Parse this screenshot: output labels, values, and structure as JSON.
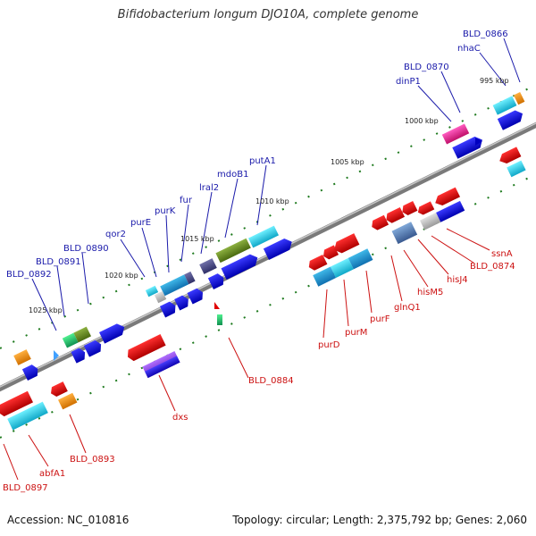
{
  "title": "Bifidobacterium longum DJO10A, complete genome",
  "footer": {
    "accession": "Accession: NC_010816",
    "summary": "Topology: circular; Length: 2,375,792 bp; Genes: 2,060"
  },
  "colors": {
    "forward_label": "#1a1aaa",
    "reverse_label": "#cc1111",
    "backbone": "#888888",
    "tick": "#1e7a1e"
  },
  "kbp_ticks": [
    {
      "label": "995 kbp"
    },
    {
      "label": "1000 kbp"
    },
    {
      "label": "1005 kbp"
    },
    {
      "label": "1010 kbp"
    },
    {
      "label": "1015 kbp"
    },
    {
      "label": "1020 kbp"
    },
    {
      "label": "1025 kbp"
    }
  ],
  "forward_genes": [
    {
      "label": "BLD_0866"
    },
    {
      "label": "nhaC"
    },
    {
      "label": "BLD_0870"
    },
    {
      "label": "dinP1"
    },
    {
      "label": "putA1"
    },
    {
      "label": "mdoB1"
    },
    {
      "label": "lral2"
    },
    {
      "label": "fur"
    },
    {
      "label": "purK"
    },
    {
      "label": "purE"
    },
    {
      "label": "qor2"
    },
    {
      "label": "BLD_0890"
    },
    {
      "label": "BLD_0891"
    },
    {
      "label": "BLD_0892"
    }
  ],
  "reverse_genes": [
    {
      "label": "ssnA"
    },
    {
      "label": "BLD_0874"
    },
    {
      "label": "hisJ4"
    },
    {
      "label": "hisM5"
    },
    {
      "label": "glnQ1"
    },
    {
      "label": "purF"
    },
    {
      "label": "purM"
    },
    {
      "label": "purD"
    },
    {
      "label": "BLD_0884"
    },
    {
      "label": "dxs"
    },
    {
      "label": "BLD_0893"
    },
    {
      "label": "abfA1"
    },
    {
      "label": "BLD_0897"
    }
  ]
}
